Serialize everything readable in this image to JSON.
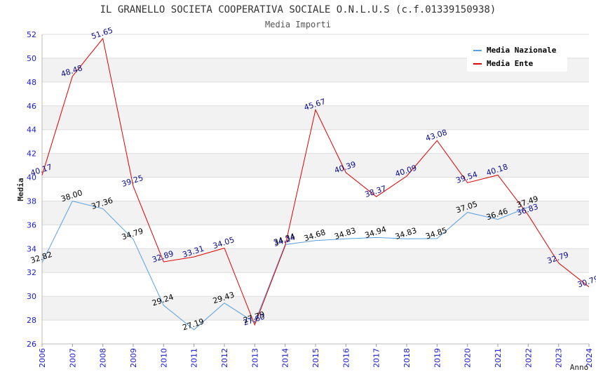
{
  "chart_data": {
    "type": "line",
    "title": "IL GRANELLO SOCIETA COOPERATIVA SOCIALE O.N.L.U.S (c.f.01339150938)",
    "subtitle": "Media Importi",
    "xlabel": "Anno",
    "ylabel": "Media",
    "ylim": [
      26,
      52
    ],
    "yticks": [
      "26",
      "28",
      "30",
      "32",
      "34",
      "36",
      "38",
      "40",
      "42",
      "44",
      "46",
      "48",
      "50",
      "52"
    ],
    "grid": true,
    "legend_position": "top-right",
    "categories": [
      "2006",
      "2007",
      "2008",
      "2009",
      "2010",
      "2011",
      "2012",
      "2013",
      "2014",
      "2015",
      "2016",
      "2017",
      "2018",
      "2019",
      "2020",
      "2021",
      "2022",
      "2023",
      "2024"
    ],
    "series": [
      {
        "name": "Media Nazionale",
        "color": "#5aa0e0",
        "values": [
          32.82,
          38.0,
          37.36,
          34.79,
          29.24,
          27.19,
          29.43,
          27.79,
          34.34,
          34.68,
          34.83,
          34.94,
          34.83,
          34.85,
          37.05,
          36.46,
          37.49,
          null,
          null
        ],
        "labels": [
          "32.82",
          "38.00",
          "37.36",
          "34.79",
          "29.24",
          "27.19",
          "29.43",
          "27.79",
          "34.34",
          "34.68",
          "34.83",
          "34.94",
          "34.83",
          "34.85",
          "37.05",
          "36.46",
          "37.49",
          "",
          ""
        ]
      },
      {
        "name": "Media Ente",
        "color": "#e00000",
        "values": [
          40.17,
          48.48,
          51.65,
          39.25,
          32.89,
          33.31,
          34.05,
          27.6,
          34.24,
          45.67,
          40.39,
          38.37,
          40.09,
          43.08,
          39.54,
          40.18,
          36.83,
          32.79,
          30.79
        ],
        "labels": [
          "40.17",
          "48.48",
          "51.65",
          "39.25",
          "32.89",
          "33.31",
          "34.05",
          "27.60",
          "34.24",
          "45.67",
          "40.39",
          "38.37",
          "40.09",
          "43.08",
          "39.54",
          "40.18",
          "36.83",
          "32.79",
          "30.79"
        ]
      }
    ]
  }
}
